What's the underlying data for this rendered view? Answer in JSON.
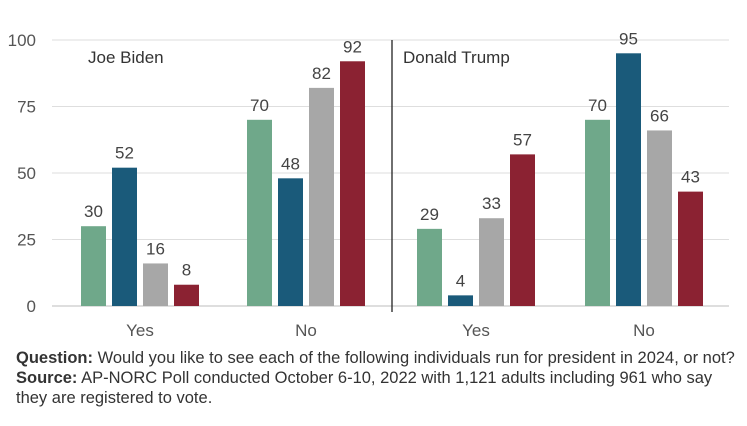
{
  "chart_data": {
    "type": "bar",
    "ylim": [
      0,
      100
    ],
    "yticks": [
      0,
      25,
      50,
      75,
      100
    ],
    "grid": true,
    "categories": [
      "Yes",
      "No"
    ],
    "colors": [
      "#6fa88a",
      "#1a5a7a",
      "#a7a7a7",
      "#8b2232"
    ],
    "panels": [
      {
        "title": "Joe Biden",
        "series_values": [
          [
            30,
            70
          ],
          [
            52,
            48
          ],
          [
            16,
            82
          ],
          [
            8,
            92
          ]
        ]
      },
      {
        "title": "Donald Trump",
        "series_values": [
          [
            29,
            70
          ],
          [
            4,
            95
          ],
          [
            33,
            66
          ],
          [
            57,
            43
          ]
        ]
      }
    ]
  },
  "notes": {
    "question_label": "Question:",
    "question_text": "Would you like to see each of the following individuals run for president in 2024, or not?",
    "source_label": "Source:",
    "source_text": "AP-NORC Poll conducted October 6-10, 2022 with 1,121 adults  including 961 who say they are registered to vote."
  }
}
